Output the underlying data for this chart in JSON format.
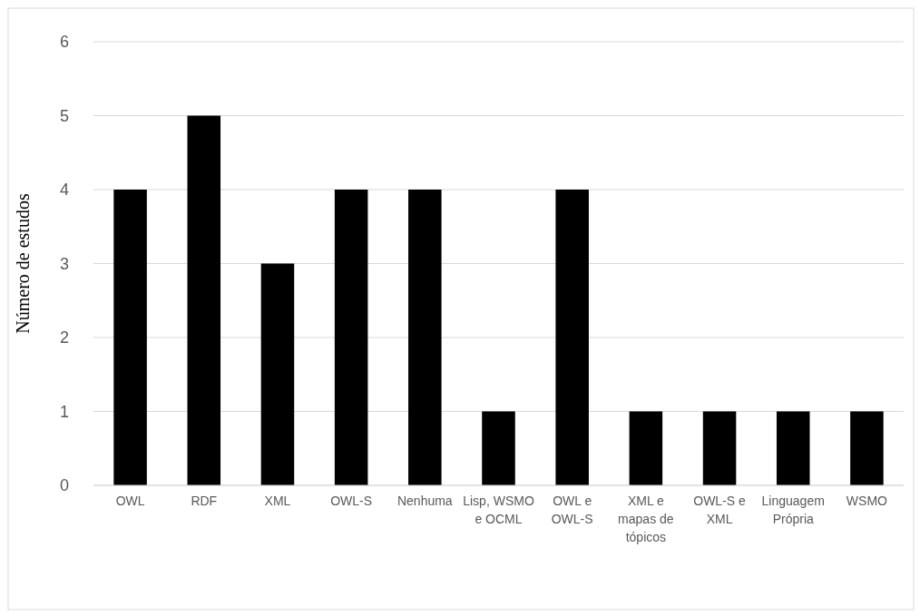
{
  "chart_data": {
    "type": "bar",
    "ylabel": "Número de estudos",
    "categories": [
      "OWL",
      "RDF",
      "XML",
      "OWL-S",
      "Nenhuma",
      "Lisp, WSMO e OCML",
      "OWL e OWL-S",
      "XML e mapas de tópicos",
      "OWL-S e XML",
      "Linguagem Própria",
      "WSMO"
    ],
    "values": [
      4,
      5,
      3,
      4,
      4,
      1,
      4,
      1,
      1,
      1,
      1
    ],
    "color": "#000000",
    "ylim": [
      0,
      6
    ],
    "yticks": [
      0,
      1,
      2,
      3,
      4,
      5,
      6
    ],
    "grid": "y"
  }
}
